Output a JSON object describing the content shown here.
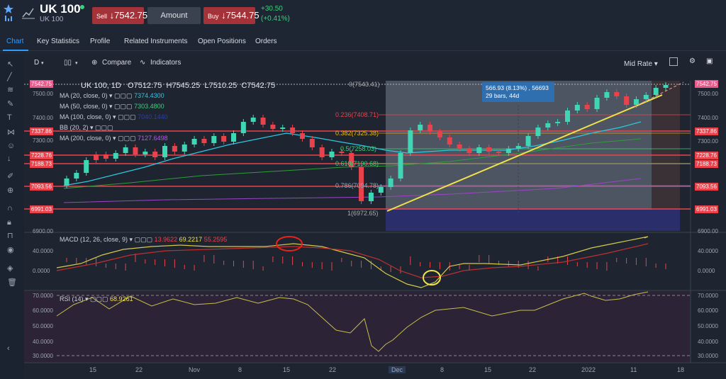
{
  "header": {
    "title": "UK 100",
    "subtitle": "UK 100",
    "sell_label": "Sell",
    "sell_price": "7542.75",
    "amount_label": "Amount",
    "buy_label": "Buy",
    "buy_price": "7544.75",
    "change_abs": "+30.50",
    "change_pct": "(+0.41%)"
  },
  "tabs": [
    "Chart",
    "Key Statistics",
    "Profile",
    "Related Instruments",
    "Open Positions",
    "Orders"
  ],
  "toolbar": {
    "interval": "D",
    "compare": "Compare",
    "indicators": "Indicators",
    "price_type": "Mid Rate"
  },
  "ohlc": {
    "symbol": "UK 100, 1D",
    "o": "O7512.75",
    "h": "H7545.25",
    "l": "L7510.25",
    "c": "C7542.75"
  },
  "legend": {
    "ma20": "MA (20, close, 0)",
    "ma20_val": "7374.4300",
    "ma50": "MA (50, close, 0)",
    "ma50_val": "7303.4800",
    "ma100": "MA (100, close, 0)",
    "ma100_val": "7040.1440",
    "bb": "BB (20, 2)",
    "ma200": "MA (200, close, 0)",
    "ma200_val": "7127.6498"
  },
  "tooltip": {
    "line1": "566.93 (8.13%) , 56693",
    "line2": "29 bars, 44d"
  },
  "fib": [
    "0(7543.41)",
    "0.236(7408.71)",
    "0.382(7325.38)",
    "0.5(7258.03)",
    "0.618(7190.68)",
    "0.786(7094.78)",
    "1(6972.65)"
  ],
  "price_labels": [
    "7542.75",
    "7337.86",
    "7228.76",
    "7188.73",
    "7093.56",
    "6991.03"
  ],
  "price_axis": [
    "7500.00",
    "7400.00",
    "7300.00",
    "6900.00"
  ],
  "macd": {
    "label": "MACD (12, 26, close, 9)",
    "v1": "13.9622",
    "v2": "69.2217",
    "v3": "55.2595",
    "axis": [
      "40.0000",
      "0.0000"
    ]
  },
  "rsi": {
    "label": "RSI (14)",
    "value": "68.9261",
    "axis": [
      "70.0000",
      "60.0000",
      "50.0000",
      "40.0000",
      "30.0000"
    ]
  },
  "xaxis": [
    "15",
    "22",
    "Nov",
    "8",
    "15",
    "22",
    "Dec",
    "8",
    "15",
    "22",
    "2022",
    "11",
    "18"
  ],
  "colors": {
    "bg": "#1e2531",
    "up": "#3fd6b6",
    "down": "#e8434c",
    "accent": "#2e9bff",
    "trend": "#f0e24a"
  }
}
